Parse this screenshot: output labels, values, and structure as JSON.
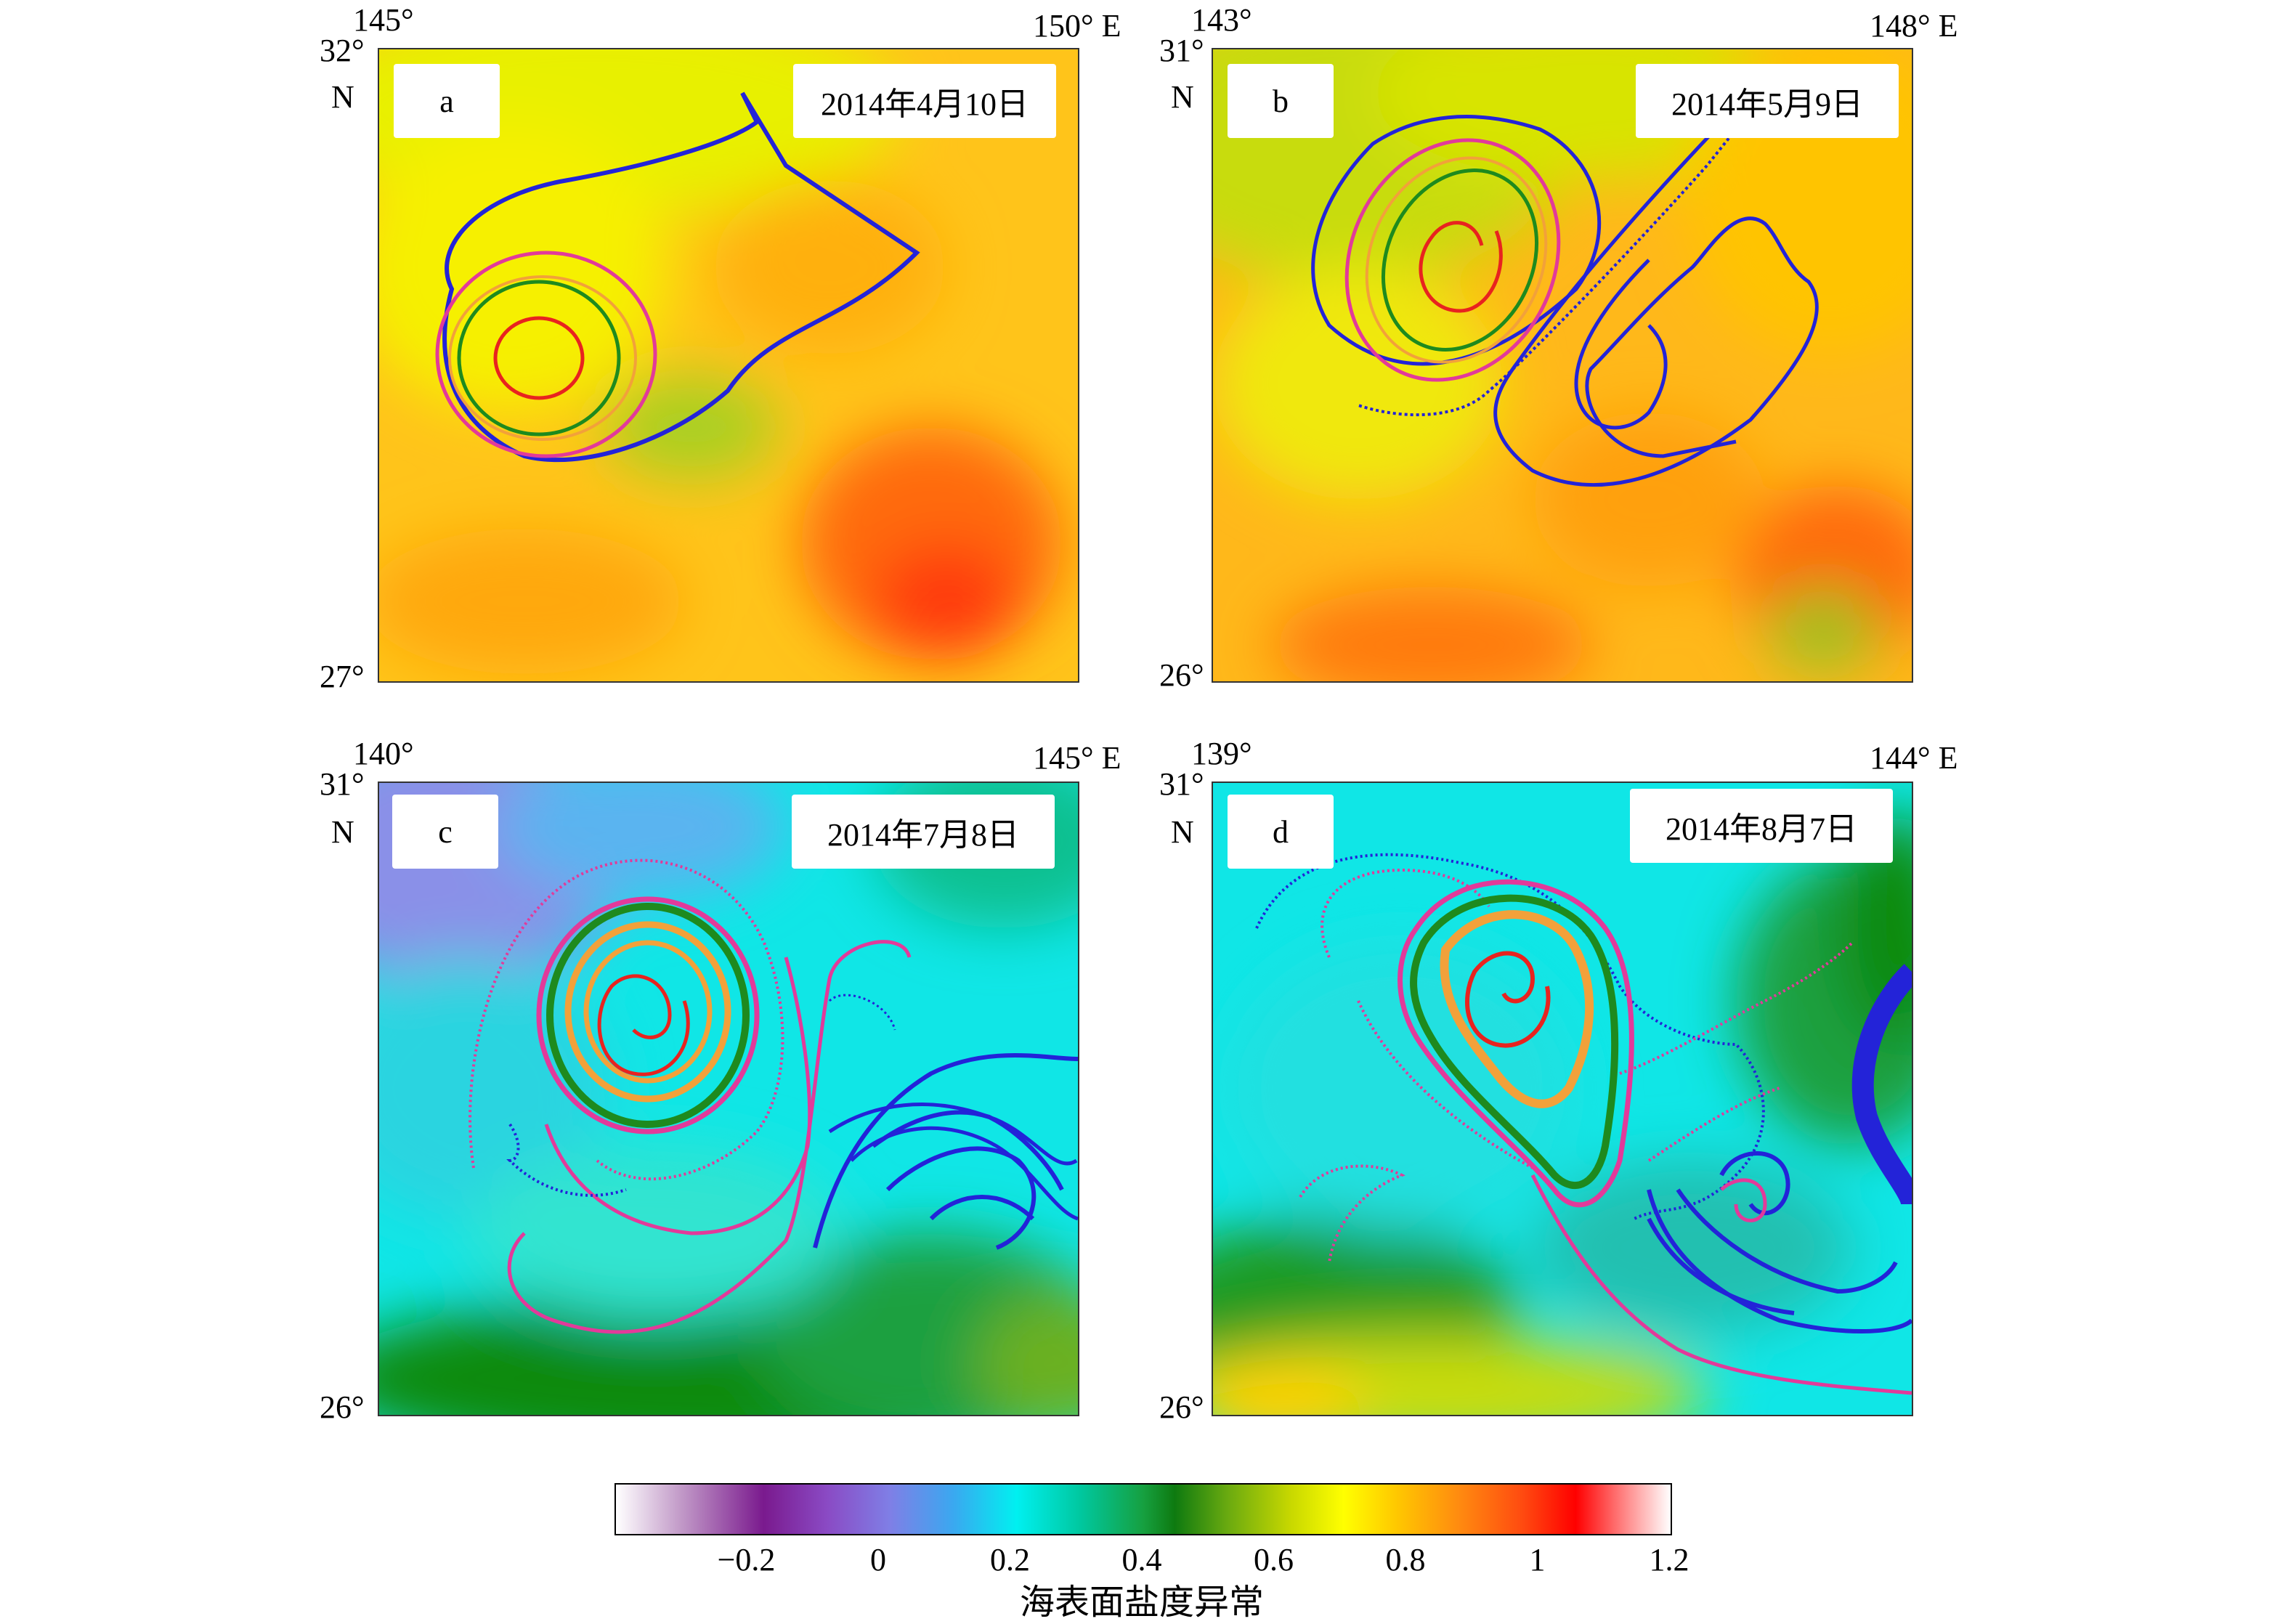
{
  "panels": [
    {
      "id": "a",
      "label": "a",
      "date": "2014年4月10日",
      "lon_left": "145°",
      "lon_right": "150° E",
      "lat_top": "32°",
      "lat_n": "N",
      "lat_bottom": "27°",
      "field": "warm"
    },
    {
      "id": "b",
      "label": "b",
      "date": "2014年5月9日",
      "lon_left": "143°",
      "lon_right": "148° E",
      "lat_top": "31°",
      "lat_n": "N",
      "lat_bottom": "26°",
      "field": "warm"
    },
    {
      "id": "c",
      "label": "c",
      "date": "2014年7月8日",
      "lon_left": "140°",
      "lon_right": "145° E",
      "lat_top": "31°",
      "lat_n": "N",
      "lat_bottom": "26°",
      "field": "cool"
    },
    {
      "id": "d",
      "label": "d",
      "date": "2014年8月7日",
      "lon_left": "139°",
      "lon_right": "144° E",
      "lat_top": "31°",
      "lat_n": "N",
      "lat_bottom": "26°",
      "field": "cool"
    }
  ],
  "colorbar": {
    "label": "海表面盐度异常",
    "min": -0.4,
    "max": 1.2,
    "ticks": [
      "−0.2",
      "0",
      "0.2",
      "0.4",
      "0.6",
      "0.8",
      "1",
      "1.2"
    ],
    "tick_values": [
      -0.2,
      0,
      0.2,
      0.4,
      0.6,
      0.8,
      1.0,
      1.2
    ]
  },
  "colors": {
    "contour_red": "#e8231f",
    "contour_orange": "#f2a13a",
    "contour_green": "#1e8a1e",
    "contour_pink": "#e23a9a",
    "contour_blue": "#2323d8"
  }
}
